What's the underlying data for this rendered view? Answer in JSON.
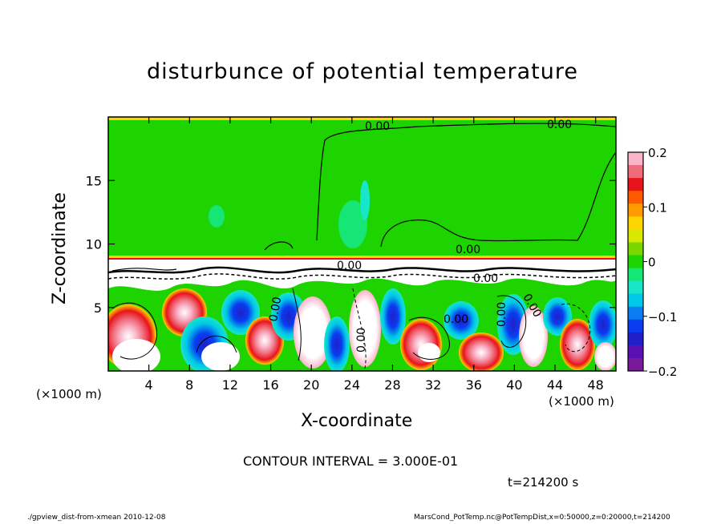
{
  "chart_data": {
    "type": "heatmap",
    "title": "disturbunce of potential temperature",
    "xlabel": "X-coordinate",
    "ylabel": "Z-coordinate",
    "x_unit_left": "(×1000 m)",
    "x_unit_right": "(×1000 m)",
    "xlim": [
      0,
      50
    ],
    "ylim": [
      0,
      20
    ],
    "x_ticks": [
      "4",
      "8",
      "12",
      "16",
      "20",
      "24",
      "28",
      "32",
      "36",
      "40",
      "44",
      "48"
    ],
    "y_ticks": [
      "5",
      "10",
      "15"
    ],
    "colorbar": {
      "ticks": [
        "0.2",
        "0.1",
        "0",
        "−0.1",
        "−0.2"
      ],
      "range": [
        -0.2,
        0.2
      ],
      "colors": [
        "#f8b4c8",
        "#f06b7a",
        "#e8141c",
        "#ff5a00",
        "#ff9b00",
        "#ffd400",
        "#d8e800",
        "#7ad800",
        "#1ed400",
        "#16e676",
        "#17e6c8",
        "#00c8e8",
        "#0a7ef0",
        "#0a3cf0",
        "#2020c8",
        "#5a10b4",
        "#7a1a9a"
      ]
    },
    "contour_labels": [
      "0.00",
      "0.00",
      "0.00",
      "0.00",
      "0.00",
      "0.00",
      "0.00",
      "0.00",
      "0.00",
      "0.00"
    ]
  },
  "annotations": {
    "contour_interval": "CONTOUR INTERVAL = 3.000E-01",
    "time": "t=214200 s",
    "footer_left": "./gpview_dist-from-xmean   2010-12-08",
    "footer_right": "MarsCond_PotTemp.nc@PotTempDist,x=0:50000,z=0:20000,t=214200"
  }
}
